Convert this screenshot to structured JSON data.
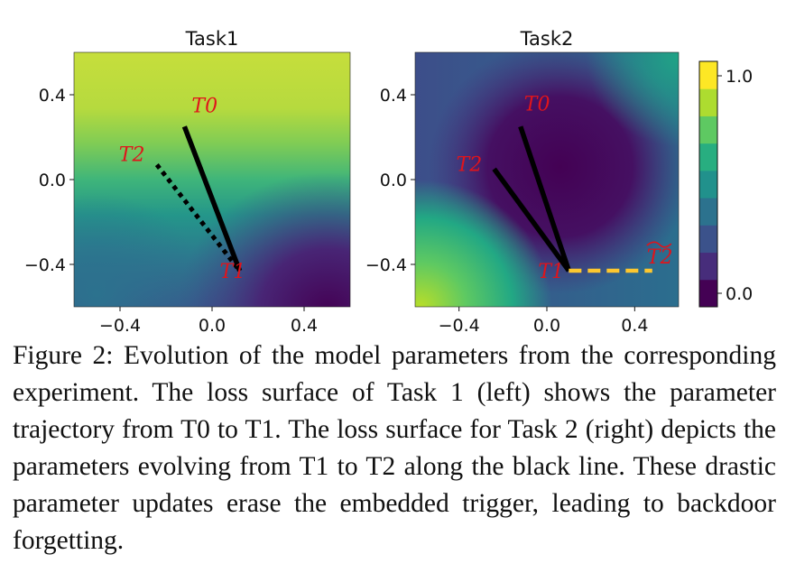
{
  "chart_data": [
    {
      "type": "heatmap",
      "title": "Task1",
      "xlim": [
        -0.6,
        0.6
      ],
      "ylim": [
        -0.6,
        0.6
      ],
      "x_ticks": [
        "−0.4",
        "0.0",
        "0.4"
      ],
      "y_ticks": [
        "0.4",
        "0.0",
        "−0.4"
      ],
      "colormap": "viridis",
      "points": [
        {
          "label": "T0",
          "x": -0.12,
          "y": 0.25
        },
        {
          "label": "T2",
          "x": -0.24,
          "y": 0.07
        },
        {
          "label": "T1",
          "x": 0.12,
          "y": -0.43
        }
      ],
      "paths": [
        {
          "from": "T0",
          "to": "T1",
          "style": "solid",
          "color": "#000000"
        },
        {
          "from": "T2",
          "to": "T1",
          "style": "dotted",
          "color": "#000000"
        }
      ]
    },
    {
      "type": "heatmap",
      "title": "Task2",
      "xlim": [
        -0.6,
        0.6
      ],
      "ylim": [
        -0.6,
        0.6
      ],
      "x_ticks": [
        "−0.4",
        "0.0",
        "0.4"
      ],
      "y_ticks": [
        "0.4",
        "0.0",
        "−0.4"
      ],
      "colormap": "viridis",
      "colorbar": {
        "min_label": "0.0",
        "max_label": "1.0",
        "levels": 9
      },
      "points": [
        {
          "label": "T0",
          "x": -0.12,
          "y": 0.25
        },
        {
          "label": "T2",
          "x": -0.24,
          "y": 0.05
        },
        {
          "label": "T1",
          "x": 0.1,
          "y": -0.43
        },
        {
          "label": "T2",
          "x": 0.48,
          "y": -0.43,
          "tilde": true
        }
      ],
      "paths": [
        {
          "from": "T0",
          "to": "T1",
          "style": "solid",
          "color": "#000000"
        },
        {
          "from": "T2",
          "to": "T1",
          "style": "solid",
          "color": "#000000"
        },
        {
          "from": "T1",
          "to": "T2~",
          "style": "dashed",
          "color": "#fdc72f"
        }
      ]
    }
  ],
  "caption": "Figure 2: Evolution of the model parameters from the corresponding experiment. The loss surface of Task 1 (left) shows the parameter trajectory from T0 to T1. The loss surface for Task 2 (right) depicts the parameters evolving from T1 to T2 along the black line. These drastic parameter updates erase the embedded trigger, leading to backdoor forgetting.",
  "colors": {
    "viridis": [
      "#440154",
      "#472d7b",
      "#3b528b",
      "#2c728e",
      "#21918c",
      "#28ae80",
      "#5ec962",
      "#addc30",
      "#fde725"
    ],
    "annotation_red": "#e0141b",
    "dashed_yellow": "#fdc72f"
  }
}
